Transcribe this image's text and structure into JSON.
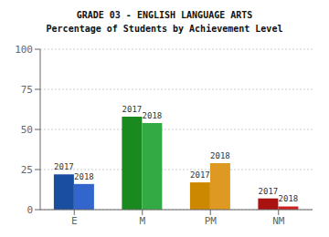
{
  "chart_data": {
    "type": "bar",
    "title": "GRADE 03 - ENGLISH LANGUAGE ARTS",
    "subtitle": "Percentage of Students by Achievement Level",
    "categories": [
      "E",
      "M",
      "PM",
      "NM"
    ],
    "series": [
      {
        "name": "2017",
        "colors": [
          "#1a4fa0",
          "#1a8a20",
          "#cc8800",
          "#aa1111"
        ],
        "values": [
          22,
          58,
          17,
          7
        ]
      },
      {
        "name": "2018",
        "colors": [
          "#3366cc",
          "#33aa44",
          "#dd9922",
          "#cc2222"
        ],
        "values": [
          16,
          54,
          29,
          2
        ]
      }
    ],
    "ylim": [
      0,
      100
    ],
    "yticks": [
      0,
      25,
      50,
      75,
      100
    ],
    "grid": true
  }
}
